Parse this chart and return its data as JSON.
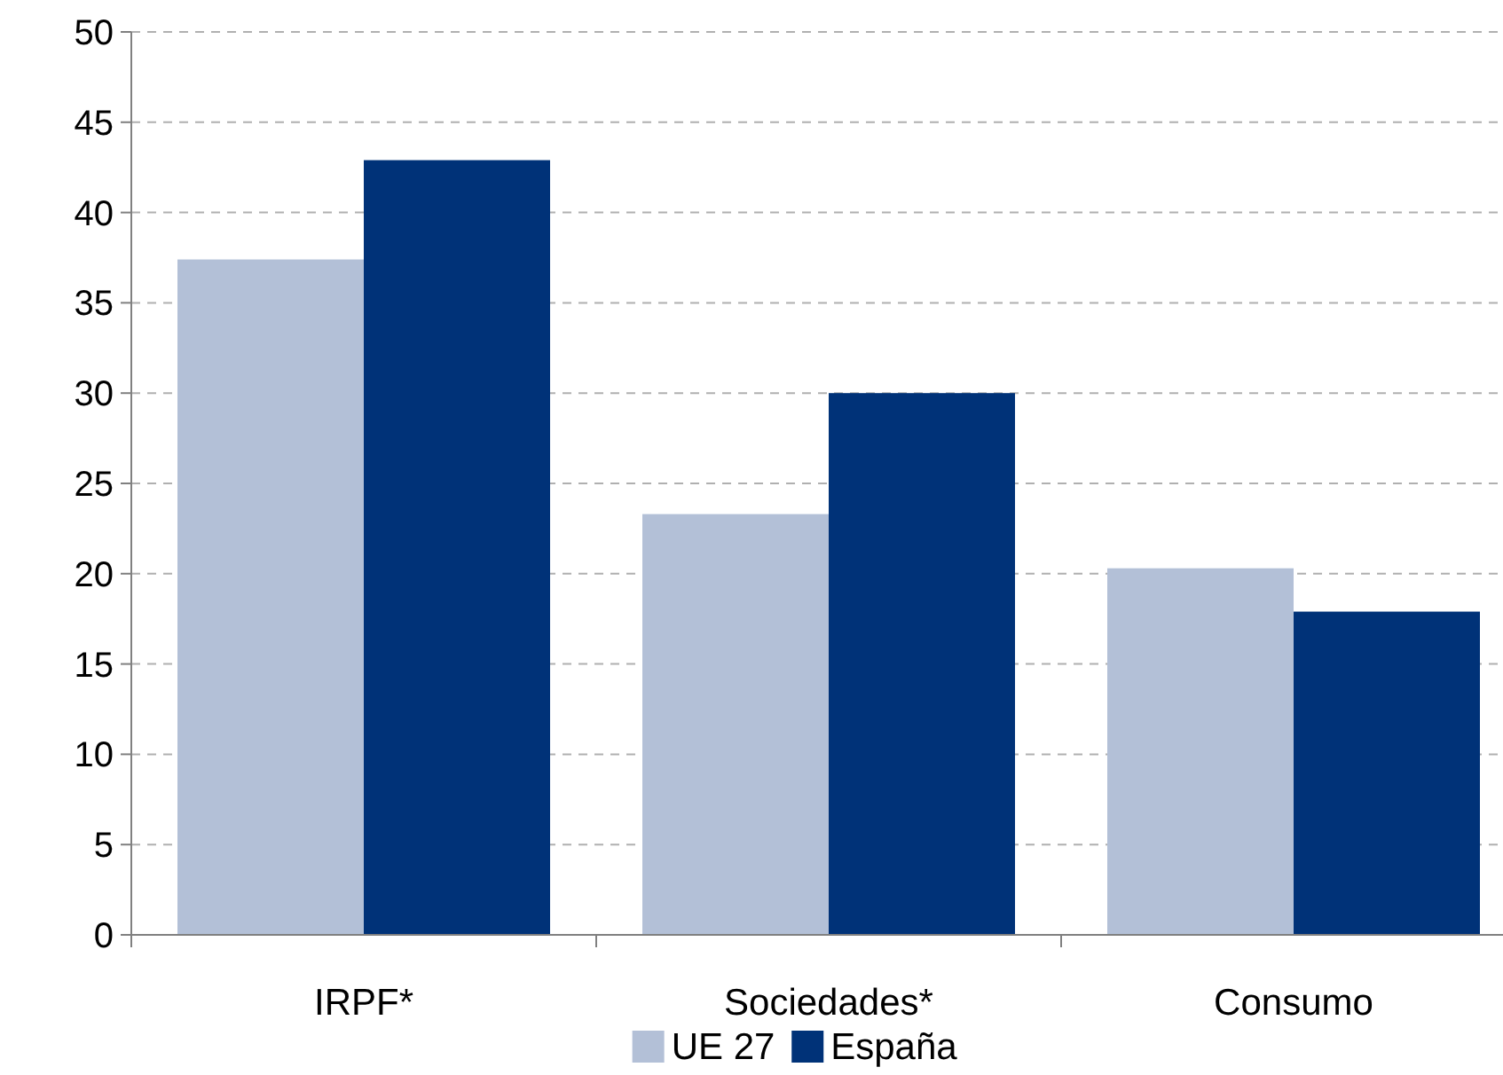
{
  "chart_data": {
    "type": "bar",
    "categories": [
      "IRPF*",
      "Sociedades*",
      "Consumo"
    ],
    "series": [
      {
        "name": "UE 27",
        "color": "#b3c0d7",
        "values": [
          37.4,
          23.3,
          20.3
        ]
      },
      {
        "name": "España",
        "color": "#003278",
        "values": [
          42.9,
          30,
          17.9
        ]
      }
    ],
    "ylim": [
      0,
      50
    ],
    "yticks": [
      0,
      5,
      10,
      15,
      20,
      25,
      30,
      35,
      40,
      45,
      50
    ],
    "grid": "y",
    "legend": "bottom"
  }
}
